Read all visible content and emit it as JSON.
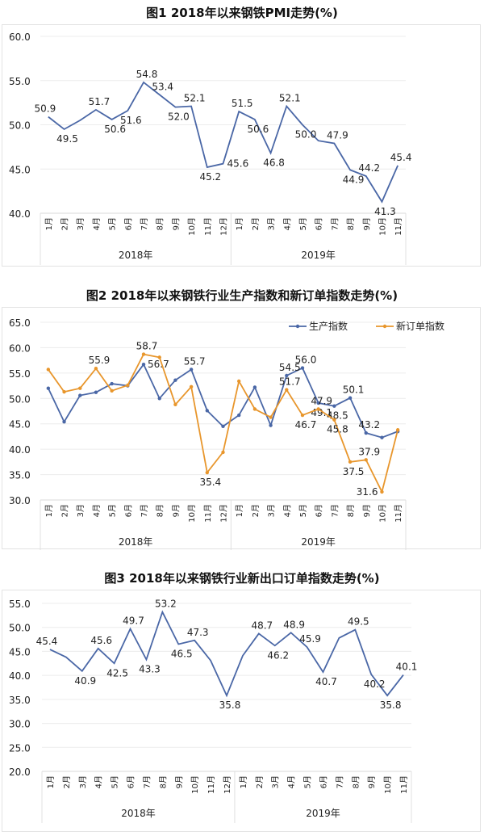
{
  "chart_data": [
    {
      "type": "line",
      "title": "图1 2018年以来钢铁PMI走势(%)",
      "categories": [
        "1月",
        "2月",
        "3月",
        "4月",
        "5月",
        "6月",
        "7月",
        "8月",
        "9月",
        "10月",
        "11月",
        "12月",
        "1月",
        "2月",
        "3月",
        "4月",
        "5月",
        "6月",
        "7月",
        "8月",
        "9月",
        "10月",
        "11月"
      ],
      "groups": [
        {
          "label": "2018年",
          "count": 12
        },
        {
          "label": "2019年",
          "count": 11
        }
      ],
      "ylim": [
        40,
        60
      ],
      "yticks": [
        "40.0",
        "45.0",
        "50.0",
        "55.0",
        "60.0"
      ],
      "grid": true,
      "series": [
        {
          "color": "#4a67a6",
          "values": [
            50.9,
            49.5,
            50.5,
            51.7,
            50.6,
            51.6,
            54.8,
            53.4,
            52.0,
            52.1,
            45.2,
            45.6,
            51.5,
            50.6,
            46.8,
            52.1,
            50.0,
            48.2,
            47.9,
            44.9,
            44.2,
            41.3,
            45.4
          ],
          "labels": [
            "50.9",
            "49.5",
            null,
            "51.7",
            "50.6",
            "51.6",
            "54.8",
            "53.4",
            "52.0",
            "52.1",
            "45.2",
            "45.6",
            "51.5",
            "50.6",
            "46.8",
            "52.1",
            "50.0",
            null,
            "47.9",
            "44.9",
            "44.2",
            "41.3",
            "45.4"
          ]
        }
      ]
    },
    {
      "type": "line",
      "title": "图2 2018年以来钢铁行业生产指数和新订单指数走势(%)",
      "categories": [
        "1月",
        "2月",
        "3月",
        "4月",
        "5月",
        "6月",
        "7月",
        "8月",
        "9月",
        "10月",
        "11月",
        "12月",
        "1月",
        "2月",
        "3月",
        "4月",
        "5月",
        "6月",
        "7月",
        "8月",
        "9月",
        "10月",
        "11月"
      ],
      "groups": [
        {
          "label": "2018年",
          "count": 12
        },
        {
          "label": "2019年",
          "count": 11
        }
      ],
      "ylim": [
        30,
        65
      ],
      "yticks": [
        "30.0",
        "35.0",
        "40.0",
        "45.0",
        "50.0",
        "55.0",
        "60.0",
        "65.0"
      ],
      "grid": true,
      "legend": "top-right",
      "series": [
        {
          "name": "生产指数",
          "color": "#4a67a6",
          "values": [
            52.0,
            45.4,
            50.6,
            51.2,
            52.9,
            52.5,
            56.7,
            50.0,
            53.6,
            55.7,
            47.6,
            44.5,
            46.7,
            52.2,
            44.7,
            54.5,
            56.0,
            49.1,
            48.5,
            50.1,
            43.2,
            42.3,
            43.5
          ],
          "labels": [
            null,
            null,
            null,
            null,
            null,
            null,
            "56.7",
            null,
            null,
            "55.7",
            null,
            null,
            null,
            null,
            null,
            "54.5",
            "56.0",
            "49.1",
            "48.5",
            "50.1",
            "43.2",
            null,
            null
          ]
        },
        {
          "name": "新订单指数",
          "color": "#e8962c",
          "values": [
            55.7,
            51.3,
            52.0,
            55.9,
            51.5,
            52.6,
            58.7,
            58.1,
            48.8,
            52.3,
            35.4,
            39.4,
            53.4,
            47.9,
            46.3,
            51.7,
            46.7,
            47.9,
            45.8,
            37.5,
            37.9,
            31.6,
            43.8
          ],
          "labels": [
            null,
            null,
            null,
            "55.9",
            null,
            null,
            "58.7",
            null,
            null,
            null,
            "35.4",
            null,
            null,
            null,
            null,
            "51.7",
            "46.7",
            "47.9",
            "45.8",
            "37.5",
            "37.9",
            "31.6",
            null
          ]
        }
      ]
    },
    {
      "type": "line",
      "title": "图3 2018年以来钢铁行业新出口订单指数走势(%)",
      "categories": [
        "1月",
        "2月",
        "3月",
        "4月",
        "5月",
        "6月",
        "7月",
        "8月",
        "9月",
        "10月",
        "11月",
        "12月",
        "1月",
        "2月",
        "3月",
        "4月",
        "5月",
        "6月",
        "7月",
        "8月",
        "9月",
        "10月",
        "11月"
      ],
      "groups": [
        {
          "label": "2018年",
          "count": 12
        },
        {
          "label": "2019年",
          "count": 11
        }
      ],
      "ylim": [
        20,
        55
      ],
      "yticks": [
        "20.0",
        "25.0",
        "30.0",
        "35.0",
        "40.0",
        "45.0",
        "50.0",
        "55.0"
      ],
      "grid": true,
      "series": [
        {
          "color": "#4a67a6",
          "values": [
            45.4,
            43.8,
            40.9,
            45.6,
            42.5,
            49.7,
            43.3,
            53.2,
            46.5,
            47.3,
            43.1,
            35.8,
            44.1,
            48.7,
            46.2,
            48.9,
            45.9,
            40.7,
            47.8,
            49.5,
            40.2,
            35.8,
            40.1
          ],
          "labels": [
            "45.4",
            null,
            "40.9",
            "45.6",
            "42.5",
            "49.7",
            "43.3",
            "53.2",
            "46.5",
            "47.3",
            null,
            "35.8",
            null,
            "48.7",
            "46.2",
            "48.9",
            "45.9",
            "40.7",
            null,
            "49.5",
            "40.2",
            "35.8",
            "40.1"
          ]
        }
      ]
    }
  ]
}
